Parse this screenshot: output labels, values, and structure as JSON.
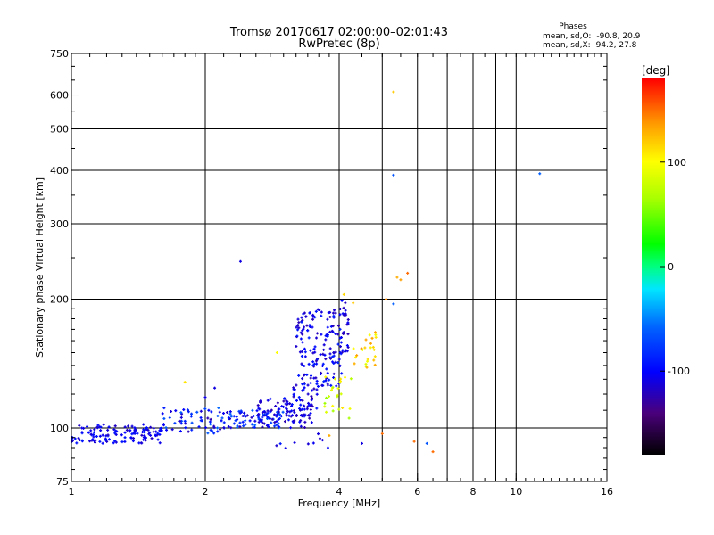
{
  "chart_data": {
    "type": "scatter",
    "title": "Tromsø 20170617 02:00:00–02:01:43",
    "subtitle": "RwPretec (8p)",
    "xlabel": "Frequency [MHz]",
    "ylabel": "Stationary phase Virtual Height [km]",
    "x_scale": "log2",
    "y_scale": "log",
    "xlim": [
      1,
      16
    ],
    "ylim": [
      75,
      750
    ],
    "grid": true,
    "x_ticks": [
      1,
      2,
      4,
      6,
      8,
      10,
      16
    ],
    "y_ticks": [
      75,
      100,
      200,
      300,
      400,
      500,
      600,
      750
    ],
    "stats": {
      "heading": "Phases",
      "o_label": "mean, sd,O:",
      "o_values": [
        -90.8,
        20.9
      ],
      "o_text": "-90.8, 20.9",
      "x_label": "mean, sd,X:",
      "x_values": [
        94.2,
        27.8
      ],
      "x_text": " 94.2, 27.8"
    },
    "colorbar": {
      "label": "[deg]",
      "range": [
        -180,
        180
      ],
      "ticks": [
        -100,
        0,
        100
      ],
      "colormap": "rainbow"
    },
    "clusters": [
      {
        "x_range": [
          1.0,
          1.6
        ],
        "y_range": [
          92,
          102
        ],
        "phase_range": [
          -120,
          -90
        ],
        "count": 130
      },
      {
        "x_range": [
          1.6,
          2.2
        ],
        "y_range": [
          97,
          112
        ],
        "phase_range": [
          -125,
          -55
        ],
        "count": 60
      },
      {
        "x_range": [
          2.2,
          3.0
        ],
        "y_range": [
          100,
          110
        ],
        "phase_range": [
          -120,
          -55
        ],
        "count": 80
      },
      {
        "x_range": [
          2.6,
          3.5
        ],
        "y_range": [
          100,
          117
        ],
        "phase_range": [
          -125,
          -95
        ],
        "count": 80
      },
      {
        "x_range": [
          3.0,
          3.6
        ],
        "y_range": [
          106,
          125
        ],
        "phase_range": [
          -125,
          -90
        ],
        "count": 40
      },
      {
        "x_range": [
          3.2,
          4.05
        ],
        "y_range": [
          125,
          190
        ],
        "phase_range": [
          -125,
          -85
        ],
        "count": 160
      },
      {
        "x_range": [
          4.0,
          4.2
        ],
        "y_range": [
          150,
          200
        ],
        "phase_range": [
          -125,
          -95
        ],
        "count": 30
      },
      {
        "x_range": [
          3.7,
          4.3
        ],
        "y_range": [
          105,
          132
        ],
        "phase_range": [
          60,
          115
        ],
        "count": 25
      },
      {
        "x_range": [
          4.3,
          4.9
        ],
        "y_range": [
          138,
          170
        ],
        "phase_range": [
          80,
          145
        ],
        "count": 25
      },
      {
        "x_range": [
          2.8,
          3.8
        ],
        "y_range": [
          88,
          97
        ],
        "phase_range": [
          -120,
          -90
        ],
        "count": 10
      }
    ],
    "points": [
      {
        "x": 2.4,
        "y": 245,
        "phase": -110
      },
      {
        "x": 5.3,
        "y": 610,
        "phase": 120
      },
      {
        "x": 5.3,
        "y": 390,
        "phase": -65
      },
      {
        "x": 11.3,
        "y": 393,
        "phase": -60
      },
      {
        "x": 5.4,
        "y": 225,
        "phase": 130
      },
      {
        "x": 5.5,
        "y": 222,
        "phase": 135
      },
      {
        "x": 5.7,
        "y": 230,
        "phase": 150
      },
      {
        "x": 5.1,
        "y": 200,
        "phase": 140
      },
      {
        "x": 5.3,
        "y": 195,
        "phase": -60
      },
      {
        "x": 5.9,
        "y": 93,
        "phase": 150
      },
      {
        "x": 6.3,
        "y": 92,
        "phase": -65
      },
      {
        "x": 6.5,
        "y": 88,
        "phase": 150
      },
      {
        "x": 5.0,
        "y": 97,
        "phase": 150
      },
      {
        "x": 4.5,
        "y": 92,
        "phase": -110
      },
      {
        "x": 3.8,
        "y": 96,
        "phase": 130
      },
      {
        "x": 1.8,
        "y": 128,
        "phase": 110
      },
      {
        "x": 2.0,
        "y": 118,
        "phase": -110
      },
      {
        "x": 2.1,
        "y": 124,
        "phase": -110
      },
      {
        "x": 2.9,
        "y": 150,
        "phase": 100
      },
      {
        "x": 4.1,
        "y": 205,
        "phase": 115
      },
      {
        "x": 4.3,
        "y": 196,
        "phase": 120
      }
    ]
  }
}
